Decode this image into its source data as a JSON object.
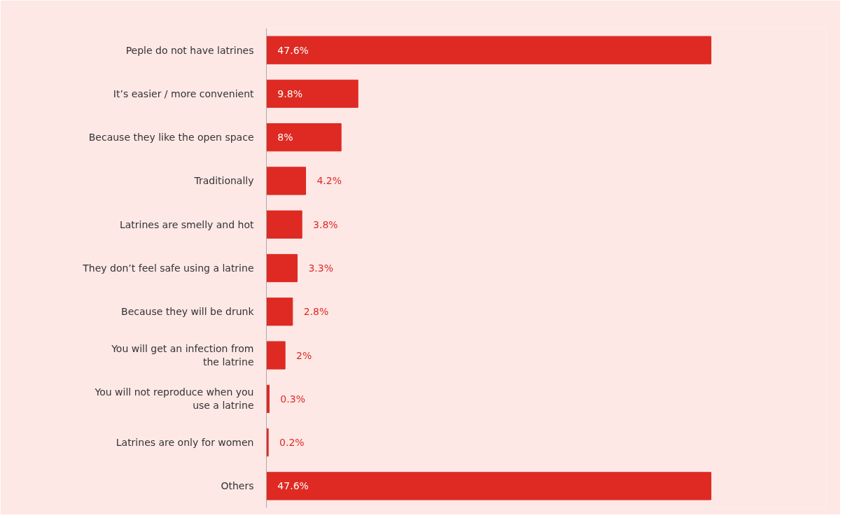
{
  "chart_data": {
    "type": "bar",
    "orientation": "horizontal",
    "color": "#de2a22",
    "grid": false,
    "tick_labels": "y",
    "value_labels": [
      "47.6%",
      "9.8%",
      "8%",
      "4.2%",
      "3.8%",
      "3.3%",
      "2.8%",
      "2%",
      "0.3%",
      "0.2%",
      "47.6%"
    ],
    "categories": [
      "Peple do not have latrines",
      "It’s easier / more convenient",
      "Because they like the open space",
      "Traditionally",
      "Latrines are smelly and hot",
      "They don’t feel safe using a latrine",
      "Because they will be drunk",
      "You will get an infection from\nthe latrine",
      "You will not reproduce when you\nuse a latrine",
      "Latrines are only for women",
      "Others"
    ],
    "values": [
      47.6,
      9.8,
      8,
      4.2,
      3.8,
      3.3,
      2.8,
      2,
      0.3,
      0.2,
      47.6
    ]
  }
}
